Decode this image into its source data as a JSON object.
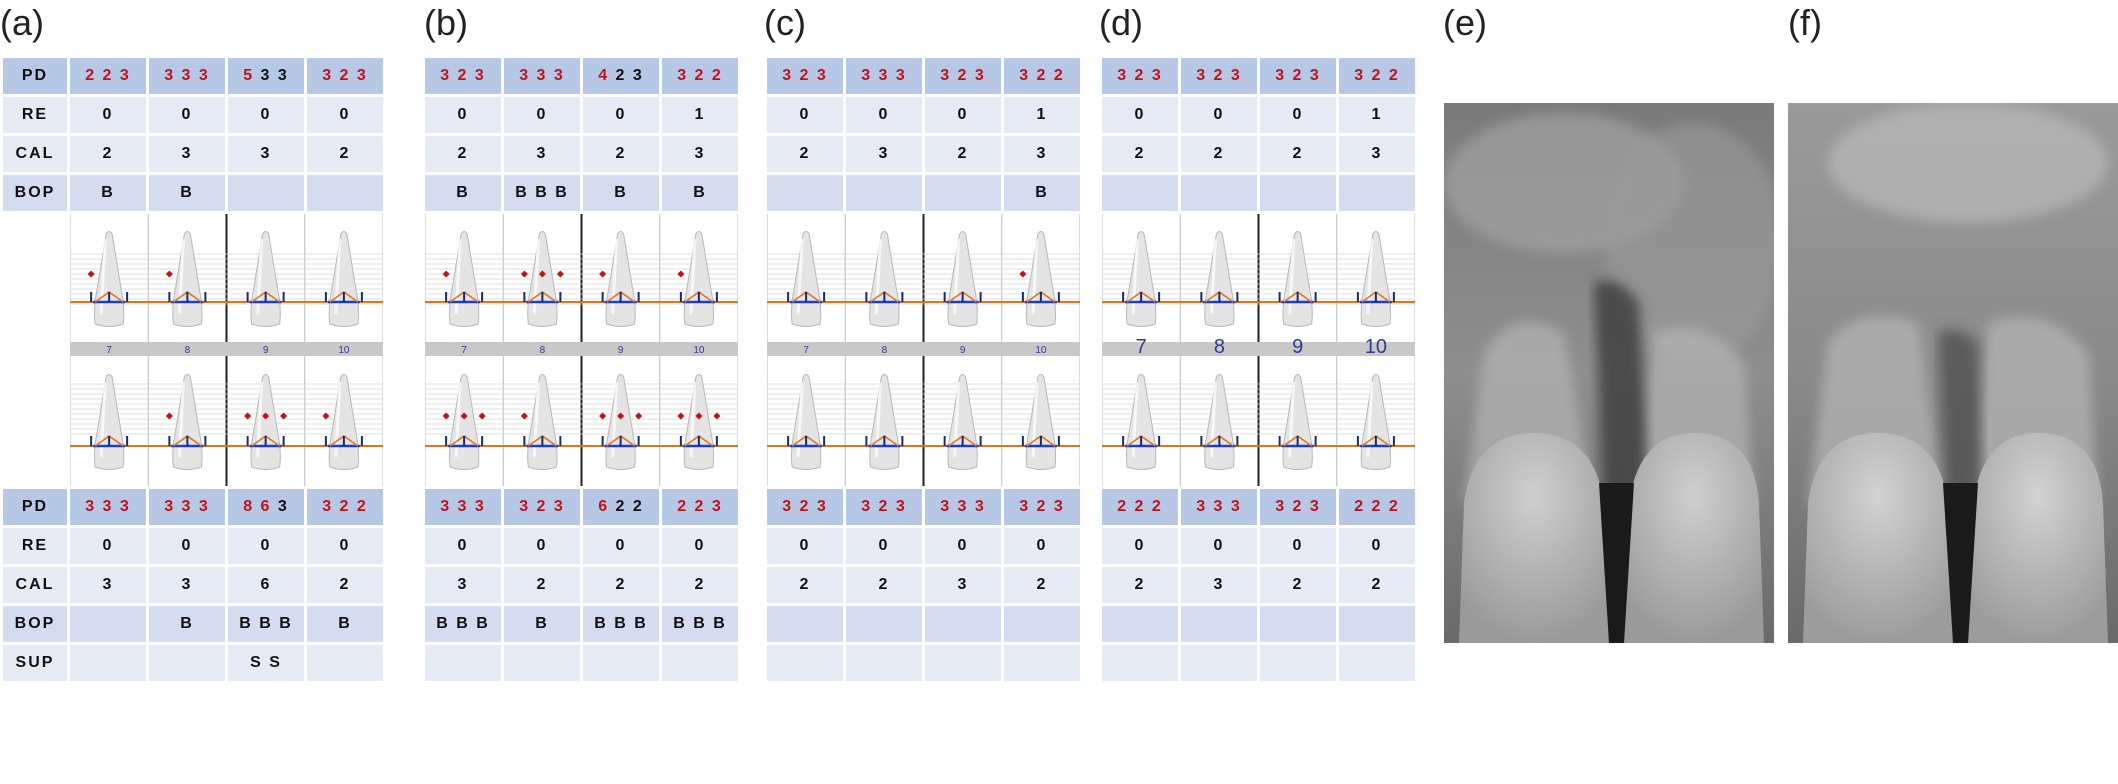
{
  "figure": {
    "labels": [
      "(a)",
      "(b)",
      "(c)",
      "(d)",
      "(e)",
      "(f)"
    ],
    "panels": [
      {
        "upper": {
          "PD": [
            [
              "2 2 3",
              ""
            ],
            [
              "3 3 3",
              ""
            ],
            [
              "5",
              " 3 3"
            ],
            [
              "3 2 3",
              ""
            ]
          ],
          "RE": [
            "0",
            "0",
            "0",
            "0"
          ],
          "CAL": [
            "2",
            "3",
            "3",
            "2"
          ],
          "BOP": [
            "B",
            "B",
            "",
            ""
          ]
        },
        "tooth_numbers": [
          "7",
          "8",
          "9",
          "10"
        ],
        "lower": {
          "PD": [
            [
              "3 3 3",
              ""
            ],
            [
              "3 3 3",
              ""
            ],
            [
              "8 6",
              " 3"
            ],
            [
              "3 2 2",
              ""
            ]
          ],
          "RE": [
            "0",
            "0",
            "0",
            "0"
          ],
          "CAL": [
            "3",
            "3",
            "6",
            "2"
          ],
          "BOP": [
            "",
            "B",
            "B B B",
            "B"
          ],
          "SUP": [
            "",
            "",
            "S S",
            ""
          ]
        }
      },
      {
        "upper": {
          "PD": [
            [
              "3 2 3",
              ""
            ],
            [
              "3 3 3",
              ""
            ],
            [
              "4",
              " 2 3"
            ],
            [
              "3 2 2",
              ""
            ]
          ],
          "RE": [
            "0",
            "0",
            "0",
            "1"
          ],
          "CAL": [
            "2",
            "3",
            "2",
            "3"
          ],
          "BOP": [
            "B",
            "B B B",
            "B",
            "B"
          ]
        },
        "tooth_numbers": [
          "7",
          "8",
          "9",
          "10"
        ],
        "lower": {
          "PD": [
            [
              "3 3 3",
              ""
            ],
            [
              "3 2 3",
              ""
            ],
            [
              "6",
              " 2 2"
            ],
            [
              "2 2 3",
              ""
            ]
          ],
          "RE": [
            "0",
            "0",
            "0",
            "0"
          ],
          "CAL": [
            "3",
            "2",
            "2",
            "2"
          ],
          "BOP": [
            "B B B",
            "B",
            "B B B",
            "B B B"
          ],
          "SUP": [
            "",
            "",
            "",
            ""
          ]
        }
      },
      {
        "upper": {
          "PD": [
            [
              "3 2 3",
              ""
            ],
            [
              "3 3 3",
              ""
            ],
            [
              "3 2 3",
              ""
            ],
            [
              "3 2 2",
              ""
            ]
          ],
          "RE": [
            "0",
            "0",
            "0",
            "1"
          ],
          "CAL": [
            "2",
            "3",
            "2",
            "3"
          ],
          "BOP": [
            "",
            "",
            "",
            "B"
          ]
        },
        "tooth_numbers": [
          "7",
          "8",
          "9",
          "10"
        ],
        "lower": {
          "PD": [
            [
              "3 2 3",
              ""
            ],
            [
              "3 2 3",
              ""
            ],
            [
              "3 3 3",
              ""
            ],
            [
              "3 2 3",
              ""
            ]
          ],
          "RE": [
            "0",
            "0",
            "0",
            "0"
          ],
          "CAL": [
            "2",
            "2",
            "3",
            "2"
          ],
          "BOP": [
            "",
            "",
            "",
            ""
          ],
          "SUP": [
            "",
            "",
            "",
            ""
          ]
        }
      },
      {
        "upper": {
          "PD": [
            [
              "3 2 3",
              ""
            ],
            [
              "3 2 3",
              ""
            ],
            [
              "3 2 3",
              ""
            ],
            [
              "3 2 2",
              ""
            ]
          ],
          "RE": [
            "0",
            "0",
            "0",
            "1"
          ],
          "CAL": [
            "2",
            "2",
            "2",
            "3"
          ],
          "BOP": [
            "",
            "",
            "",
            ""
          ]
        },
        "tooth_numbers": [
          "7",
          "8",
          "9",
          "10"
        ],
        "lower": {
          "PD": [
            [
              "2 2 2",
              ""
            ],
            [
              "3 3 3",
              ""
            ],
            [
              "3 2 3",
              ""
            ],
            [
              "2 2 2",
              ""
            ]
          ],
          "RE": [
            "0",
            "0",
            "0",
            "0"
          ],
          "CAL": [
            "2",
            "3",
            "2",
            "2"
          ],
          "BOP": [
            "",
            "",
            "",
            ""
          ],
          "SUP": [
            "",
            "",
            "",
            ""
          ]
        }
      }
    ],
    "row_labels": {
      "PD": "PD",
      "RE": "RE",
      "CAL": "CAL",
      "BOP": "BOP",
      "SUP": "SUP"
    },
    "colors": {
      "header": "#b7c7e6",
      "light": "#e6eaf4",
      "mid": "#d4dcef",
      "bop": "#c0121c",
      "sup": "#1faa3a",
      "tooth_number": "#2f3a8f",
      "gingival_line": "#e0751d",
      "bone_line": "#1d3fc4"
    }
  }
}
